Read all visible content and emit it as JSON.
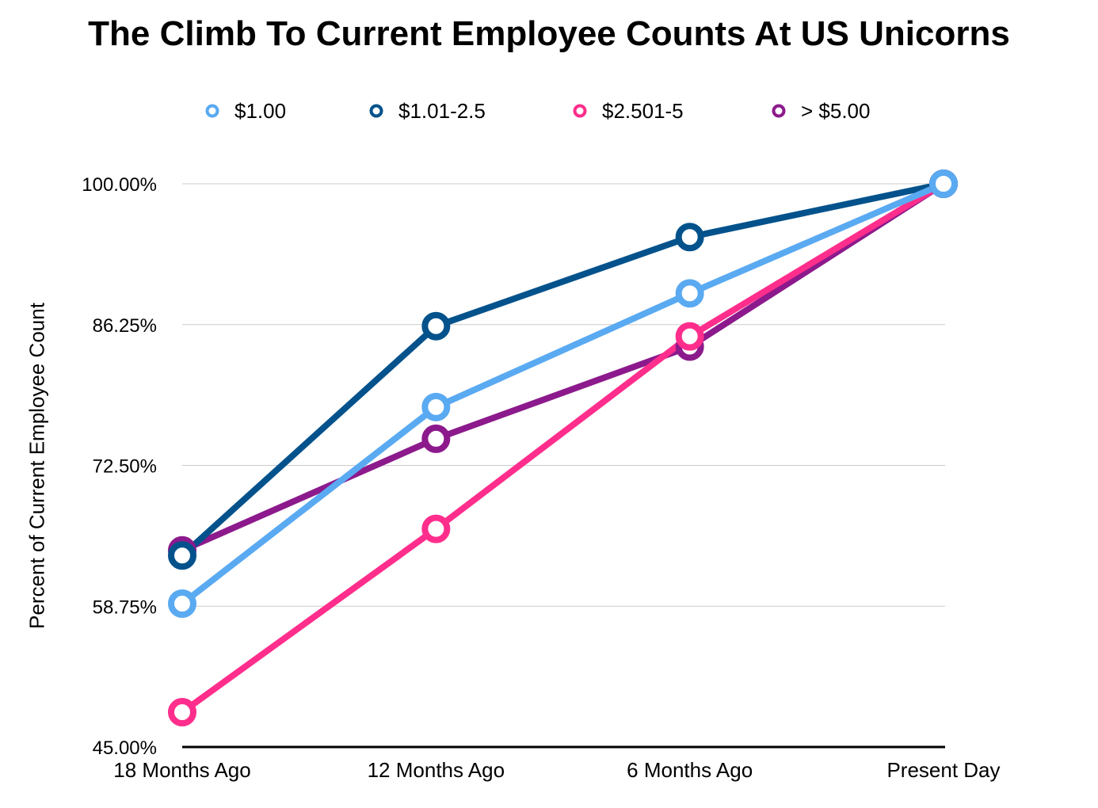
{
  "chart_data": {
    "type": "line",
    "title": "The Climb To Current Employee Counts At US Unicorns",
    "xlabel": "",
    "ylabel": "Percent of Current Employee Count",
    "categories": [
      "18 Months Ago",
      "12 Months Ago",
      "6 Months Ago",
      "Present Day"
    ],
    "ylim": [
      45.0,
      100.0
    ],
    "yticks": [
      "45.00%",
      "58.75%",
      "72.50%",
      "86.25%",
      "100.00%"
    ],
    "legend_position": "top",
    "grid": true,
    "series": [
      {
        "name": "$1.00",
        "color": "#5aaaf2",
        "values": [
          59.0,
          78.2,
          89.3,
          100.0
        ]
      },
      {
        "name": "$1.01-2.5",
        "color": "#03528c",
        "values": [
          63.7,
          86.1,
          94.8,
          100.0
        ]
      },
      {
        "name": "$2.501-5",
        "color": "#ff2e8c",
        "values": [
          48.4,
          66.3,
          85.1,
          100.0
        ]
      },
      {
        "name": "> $5.00",
        "color": "#8c1a8c",
        "values": [
          64.2,
          75.1,
          84.1,
          100.0
        ]
      }
    ]
  }
}
